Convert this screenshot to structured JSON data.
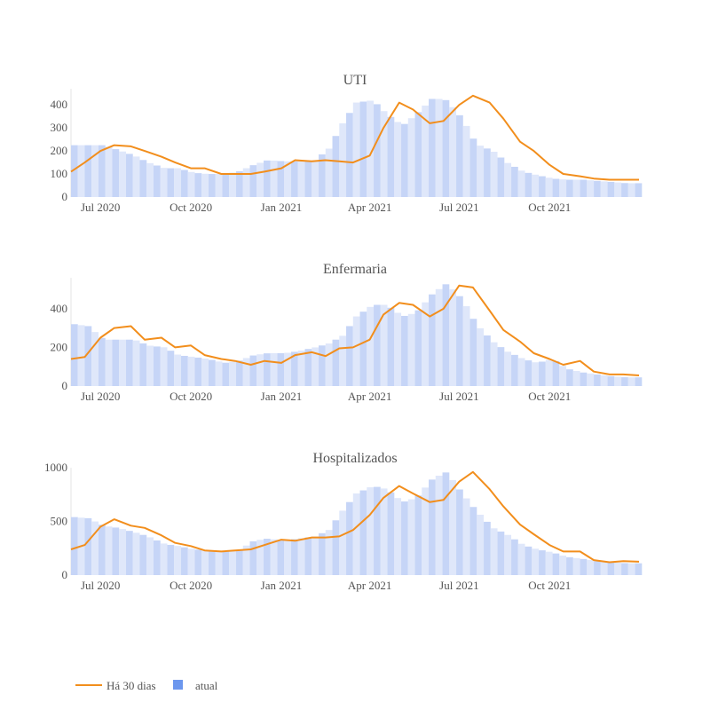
{
  "chart_data": [
    {
      "type": "area",
      "title": "UTI",
      "ylim": [
        0,
        470
      ],
      "yticks": [
        0,
        100,
        200,
        300,
        400
      ],
      "x_range": [
        "2020-06-01",
        "2021-12-31"
      ],
      "x_tick_labels": [
        "Jul 2020",
        "Oct 2020",
        "Jan 2021",
        "Apr 2021",
        "Jul 2021",
        "Oct 2021"
      ],
      "x_tick_dates": [
        "2020-07-01",
        "2020-10-01",
        "2021-01-01",
        "2021-04-01",
        "2021-07-01",
        "2021-10-01"
      ],
      "grid": false,
      "series": [
        {
          "name": "atual",
          "kind": "bar",
          "dates": [
            "2020-06-01",
            "2020-06-15",
            "2020-07-01",
            "2020-07-15",
            "2020-08-01",
            "2020-08-15",
            "2020-09-01",
            "2020-09-15",
            "2020-10-01",
            "2020-10-15",
            "2020-11-01",
            "2020-11-15",
            "2020-12-01",
            "2020-12-15",
            "2021-01-01",
            "2021-01-15",
            "2021-02-01",
            "2021-02-15",
            "2021-03-01",
            "2021-03-15",
            "2021-04-01",
            "2021-04-15",
            "2021-05-01",
            "2021-05-15",
            "2021-06-01",
            "2021-06-15",
            "2021-07-01",
            "2021-07-15",
            "2021-08-01",
            "2021-08-15",
            "2021-09-01",
            "2021-09-15",
            "2021-10-01",
            "2021-10-15",
            "2021-11-01",
            "2021-11-15",
            "2021-12-01",
            "2021-12-15",
            "2021-12-31"
          ],
          "values": [
            225,
            225,
            225,
            205,
            180,
            150,
            125,
            125,
            105,
            100,
            100,
            110,
            140,
            160,
            155,
            155,
            160,
            210,
            320,
            410,
            420,
            360,
            310,
            360,
            430,
            420,
            340,
            230,
            200,
            150,
            110,
            95,
            80,
            75,
            75,
            70,
            65,
            60,
            60
          ]
        },
        {
          "name": "Há 30 dias",
          "kind": "line",
          "dates": [
            "2020-06-01",
            "2020-06-15",
            "2020-07-01",
            "2020-07-15",
            "2020-08-01",
            "2020-08-15",
            "2020-09-01",
            "2020-09-15",
            "2020-10-01",
            "2020-10-15",
            "2020-11-01",
            "2020-11-15",
            "2020-12-01",
            "2020-12-15",
            "2021-01-01",
            "2021-01-15",
            "2021-02-01",
            "2021-02-15",
            "2021-03-01",
            "2021-03-15",
            "2021-04-01",
            "2021-04-15",
            "2021-05-01",
            "2021-05-15",
            "2021-06-01",
            "2021-06-15",
            "2021-07-01",
            "2021-07-15",
            "2021-08-01",
            "2021-08-15",
            "2021-09-01",
            "2021-09-15",
            "2021-10-01",
            "2021-10-15",
            "2021-11-01",
            "2021-11-15",
            "2021-12-01",
            "2021-12-15",
            "2021-12-31"
          ],
          "values": [
            110,
            150,
            200,
            225,
            220,
            200,
            175,
            150,
            125,
            125,
            100,
            100,
            100,
            110,
            125,
            160,
            155,
            160,
            155,
            150,
            180,
            300,
            410,
            380,
            320,
            330,
            400,
            440,
            410,
            340,
            240,
            200,
            140,
            100,
            90,
            80,
            75,
            75,
            75
          ]
        }
      ]
    },
    {
      "type": "area",
      "title": "Enfermaria",
      "ylim": [
        0,
        560
      ],
      "yticks": [
        0,
        200,
        400
      ],
      "x_range": [
        "2020-06-01",
        "2021-12-31"
      ],
      "x_tick_labels": [
        "Jul 2020",
        "Oct 2020",
        "Jan 2021",
        "Apr 2021",
        "Jul 2021",
        "Oct 2021"
      ],
      "x_tick_dates": [
        "2020-07-01",
        "2020-10-01",
        "2021-01-01",
        "2021-04-01",
        "2021-07-01",
        "2021-10-01"
      ],
      "grid": false,
      "series": [
        {
          "name": "atual",
          "kind": "bar",
          "dates": [
            "2020-06-01",
            "2020-06-15",
            "2020-07-01",
            "2020-07-15",
            "2020-08-01",
            "2020-08-15",
            "2020-09-01",
            "2020-09-15",
            "2020-10-01",
            "2020-10-15",
            "2020-11-01",
            "2020-11-15",
            "2020-12-01",
            "2020-12-15",
            "2021-01-01",
            "2021-01-15",
            "2021-02-01",
            "2021-02-15",
            "2021-03-01",
            "2021-03-15",
            "2021-04-01",
            "2021-04-15",
            "2021-05-01",
            "2021-05-15",
            "2021-06-01",
            "2021-06-15",
            "2021-07-01",
            "2021-07-15",
            "2021-08-01",
            "2021-08-15",
            "2021-09-01",
            "2021-09-15",
            "2021-10-01",
            "2021-10-15",
            "2021-11-01",
            "2021-11-15",
            "2021-12-01",
            "2021-12-15",
            "2021-12-31"
          ],
          "values": [
            320,
            310,
            240,
            240,
            240,
            210,
            200,
            160,
            150,
            140,
            120,
            130,
            160,
            170,
            170,
            180,
            200,
            220,
            260,
            360,
            420,
            420,
            360,
            380,
            480,
            530,
            450,
            320,
            230,
            180,
            140,
            120,
            140,
            90,
            70,
            60,
            50,
            45,
            45
          ]
        },
        {
          "name": "Há 30 dias",
          "kind": "line",
          "dates": [
            "2020-06-01",
            "2020-06-15",
            "2020-07-01",
            "2020-07-15",
            "2020-08-01",
            "2020-08-15",
            "2020-09-01",
            "2020-09-15",
            "2020-10-01",
            "2020-10-15",
            "2020-11-01",
            "2020-11-15",
            "2020-12-01",
            "2020-12-15",
            "2021-01-01",
            "2021-01-15",
            "2021-02-01",
            "2021-02-15",
            "2021-03-01",
            "2021-03-15",
            "2021-04-01",
            "2021-04-15",
            "2021-05-01",
            "2021-05-15",
            "2021-06-01",
            "2021-06-15",
            "2021-07-01",
            "2021-07-15",
            "2021-08-01",
            "2021-08-15",
            "2021-09-01",
            "2021-09-15",
            "2021-10-01",
            "2021-10-15",
            "2021-11-01",
            "2021-11-15",
            "2021-12-01",
            "2021-12-15",
            "2021-12-31"
          ],
          "values": [
            140,
            150,
            250,
            300,
            310,
            240,
            250,
            200,
            210,
            160,
            140,
            130,
            110,
            130,
            120,
            160,
            175,
            155,
            195,
            200,
            240,
            370,
            430,
            420,
            360,
            400,
            520,
            510,
            390,
            290,
            230,
            170,
            140,
            110,
            130,
            75,
            60,
            60,
            55
          ]
        }
      ]
    },
    {
      "type": "area",
      "title": "Hospitalizados",
      "ylim": [
        0,
        1000
      ],
      "yticks": [
        0,
        500,
        1000
      ],
      "x_range": [
        "2020-06-01",
        "2021-12-31"
      ],
      "x_tick_labels": [
        "Jul 2020",
        "Oct 2020",
        "Jan 2021",
        "Apr 2021",
        "Jul 2021",
        "Oct 2021"
      ],
      "x_tick_dates": [
        "2020-07-01",
        "2020-10-01",
        "2021-01-01",
        "2021-04-01",
        "2021-07-01",
        "2021-10-01"
      ],
      "grid": false,
      "series": [
        {
          "name": "atual",
          "kind": "bar",
          "dates": [
            "2020-06-01",
            "2020-06-15",
            "2020-07-01",
            "2020-07-15",
            "2020-08-01",
            "2020-08-15",
            "2020-09-01",
            "2020-09-15",
            "2020-10-01",
            "2020-10-15",
            "2020-11-01",
            "2020-11-15",
            "2020-12-01",
            "2020-12-15",
            "2021-01-01",
            "2021-01-15",
            "2021-02-01",
            "2021-02-15",
            "2021-03-01",
            "2021-03-15",
            "2021-04-01",
            "2021-04-15",
            "2021-05-01",
            "2021-05-15",
            "2021-06-01",
            "2021-06-15",
            "2021-07-01",
            "2021-07-15",
            "2021-08-01",
            "2021-08-15",
            "2021-09-01",
            "2021-09-15",
            "2021-10-01",
            "2021-10-15",
            "2021-11-01",
            "2021-11-15",
            "2021-12-01",
            "2021-12-15",
            "2021-12-31"
          ],
          "values": [
            540,
            530,
            460,
            440,
            400,
            360,
            290,
            270,
            240,
            230,
            220,
            230,
            320,
            340,
            320,
            340,
            360,
            420,
            600,
            760,
            830,
            800,
            680,
            720,
            900,
            960,
            760,
            600,
            440,
            380,
            280,
            240,
            210,
            170,
            150,
            130,
            120,
            110,
            110
          ]
        },
        {
          "name": "Há 30 dias",
          "kind": "line",
          "dates": [
            "2020-06-01",
            "2020-06-15",
            "2020-07-01",
            "2020-07-15",
            "2020-08-01",
            "2020-08-15",
            "2020-09-01",
            "2020-09-15",
            "2020-10-01",
            "2020-10-15",
            "2020-11-01",
            "2020-11-15",
            "2020-12-01",
            "2020-12-15",
            "2021-01-01",
            "2021-01-15",
            "2021-02-01",
            "2021-02-15",
            "2021-03-01",
            "2021-03-15",
            "2021-04-01",
            "2021-04-15",
            "2021-05-01",
            "2021-05-15",
            "2021-06-01",
            "2021-06-15",
            "2021-07-01",
            "2021-07-15",
            "2021-08-01",
            "2021-08-15",
            "2021-09-01",
            "2021-09-15",
            "2021-10-01",
            "2021-10-15",
            "2021-11-01",
            "2021-11-15",
            "2021-12-01",
            "2021-12-15",
            "2021-12-31"
          ],
          "values": [
            240,
            280,
            450,
            520,
            460,
            440,
            370,
            300,
            270,
            230,
            220,
            230,
            240,
            280,
            330,
            320,
            350,
            350,
            360,
            420,
            560,
            720,
            830,
            760,
            680,
            700,
            870,
            960,
            800,
            640,
            470,
            380,
            280,
            220,
            220,
            140,
            120,
            130,
            125
          ]
        }
      ]
    }
  ],
  "legend": {
    "position": "bottom-left",
    "items": [
      {
        "label": "Há 30 dias",
        "kind": "line",
        "color": "#f28e1c"
      },
      {
        "label": "atual",
        "kind": "square",
        "color": "#6c97ee"
      }
    ]
  },
  "colors": {
    "line": "#f28e1c",
    "bar": "#c6d5f7",
    "bar_stripe": "#dfe7fa",
    "axis_line": "#e6e6e6",
    "text": "#555555"
  }
}
